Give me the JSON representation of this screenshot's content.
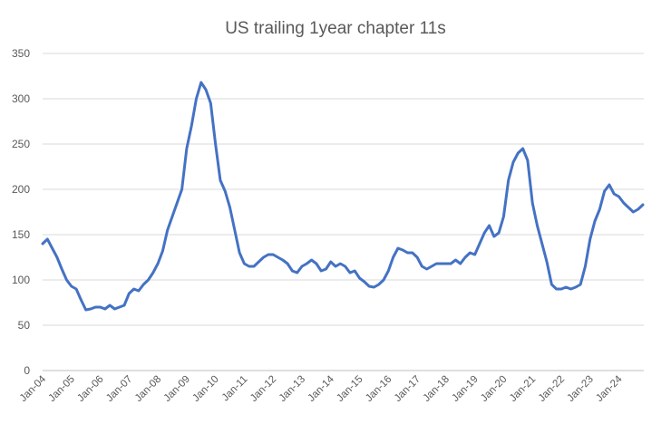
{
  "chart_data": {
    "type": "line",
    "title": "US trailing 1year chapter 11s",
    "xlabel": "",
    "ylabel": "",
    "ylim": [
      0,
      350
    ],
    "y_ticks": [
      "0",
      "50",
      "100",
      "150",
      "200",
      "250",
      "300",
      "350"
    ],
    "x_tick_labels": [
      "Jan-04",
      "Jan-05",
      "Jan-06",
      "Jan-07",
      "Jan-08",
      "Jan-09",
      "Jan-10",
      "Jan-11",
      "Jan-12",
      "Jan-13",
      "Jan-14",
      "Jan-15",
      "Jan-16",
      "Jan-17",
      "Jan-18",
      "Jan-19",
      "Jan-20",
      "Jan-21",
      "Jan-22",
      "Jan-23",
      "Jan-24"
    ],
    "grid": true,
    "legend": "none",
    "series_color": "#4472c4",
    "x": [
      "Jan-04",
      "Mar-04",
      "May-04",
      "Jul-04",
      "Sep-04",
      "Nov-04",
      "Jan-05",
      "Mar-05",
      "May-05",
      "Jul-05",
      "Sep-05",
      "Nov-05",
      "Jan-06",
      "Mar-06",
      "May-06",
      "Jul-06",
      "Sep-06",
      "Nov-06",
      "Jan-07",
      "Mar-07",
      "May-07",
      "Jul-07",
      "Sep-07",
      "Nov-07",
      "Jan-08",
      "Mar-08",
      "May-08",
      "Jul-08",
      "Sep-08",
      "Nov-08",
      "Jan-09",
      "Mar-09",
      "May-09",
      "Jul-09",
      "Sep-09",
      "Nov-09",
      "Jan-10",
      "Mar-10",
      "May-10",
      "Jul-10",
      "Sep-10",
      "Nov-10",
      "Jan-11",
      "Mar-11",
      "May-11",
      "Jul-11",
      "Sep-11",
      "Nov-11",
      "Jan-12",
      "Mar-12",
      "May-12",
      "Jul-12",
      "Sep-12",
      "Nov-12",
      "Jan-13",
      "Mar-13",
      "May-13",
      "Jul-13",
      "Sep-13",
      "Nov-13",
      "Jan-14",
      "Mar-14",
      "May-14",
      "Jul-14",
      "Sep-14",
      "Nov-14",
      "Jan-15",
      "Mar-15",
      "May-15",
      "Jul-15",
      "Sep-15",
      "Nov-15",
      "Jan-16",
      "Mar-16",
      "May-16",
      "Jul-16",
      "Sep-16",
      "Nov-16",
      "Jan-17",
      "Mar-17",
      "May-17",
      "Jul-17",
      "Sep-17",
      "Nov-17",
      "Jan-18",
      "Mar-18",
      "May-18",
      "Jul-18",
      "Sep-18",
      "Nov-18",
      "Jan-19",
      "Mar-19",
      "May-19",
      "Jul-19",
      "Sep-19",
      "Nov-19",
      "Jan-20",
      "Mar-20",
      "May-20",
      "Jul-20",
      "Sep-20",
      "Nov-20",
      "Jan-21",
      "Mar-21",
      "May-21",
      "Jul-21",
      "Sep-21",
      "Nov-21",
      "Jan-22",
      "Mar-22",
      "May-22",
      "Jul-22",
      "Sep-22",
      "Nov-22",
      "Jan-23",
      "Mar-23",
      "May-23",
      "Jul-23",
      "Sep-23",
      "Nov-23",
      "Jan-24",
      "Mar-24",
      "May-24",
      "Jul-24",
      "Sep-24",
      "Nov-24"
    ],
    "values": [
      140,
      145,
      135,
      125,
      112,
      100,
      93,
      90,
      78,
      67,
      68,
      70,
      70,
      68,
      72,
      68,
      70,
      72,
      85,
      90,
      88,
      95,
      100,
      108,
      118,
      132,
      155,
      170,
      185,
      200,
      245,
      270,
      300,
      318,
      310,
      295,
      250,
      210,
      198,
      180,
      155,
      130,
      118,
      115,
      115,
      120,
      125,
      128,
      128,
      125,
      122,
      118,
      110,
      108,
      115,
      118,
      122,
      118,
      110,
      112,
      120,
      115,
      118,
      115,
      108,
      110,
      102,
      98,
      93,
      92,
      95,
      100,
      110,
      125,
      135,
      133,
      130,
      130,
      125,
      115,
      112,
      115,
      118,
      118,
      118,
      118,
      122,
      118,
      125,
      130,
      128,
      140,
      152,
      160,
      148,
      152,
      170,
      210,
      230,
      240,
      245,
      232,
      185,
      160,
      140,
      120,
      95,
      90,
      90,
      92,
      90,
      92,
      95,
      115,
      145,
      165,
      178,
      198,
      205,
      195,
      192,
      185,
      180,
      175,
      178,
      183
    ]
  }
}
